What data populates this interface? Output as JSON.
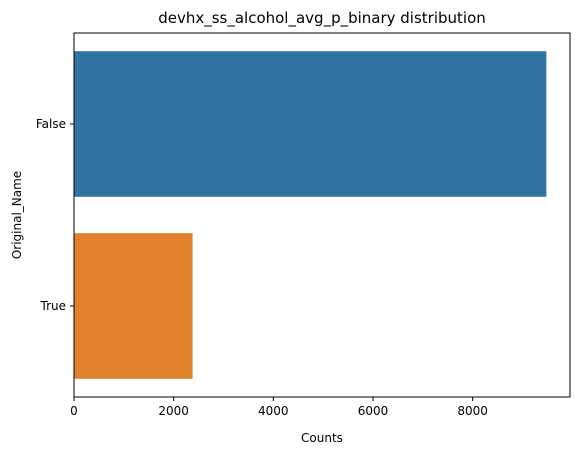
{
  "chart_data": {
    "type": "bar",
    "orientation": "horizontal",
    "title": "devhx_ss_alcohol_avg_p_binary distribution",
    "xlabel": "Counts",
    "ylabel": "Original_Name",
    "categories": [
      "False",
      "True"
    ],
    "values": [
      9480,
      2380
    ],
    "colors": [
      "#3274a1",
      "#e1812c"
    ],
    "xlim": [
      0,
      9954
    ],
    "xticks": [
      0,
      2000,
      4000,
      6000,
      8000
    ],
    "xtick_labels": [
      "0",
      "2000",
      "4000",
      "6000",
      "8000"
    ],
    "grid": false,
    "legend": "none"
  }
}
